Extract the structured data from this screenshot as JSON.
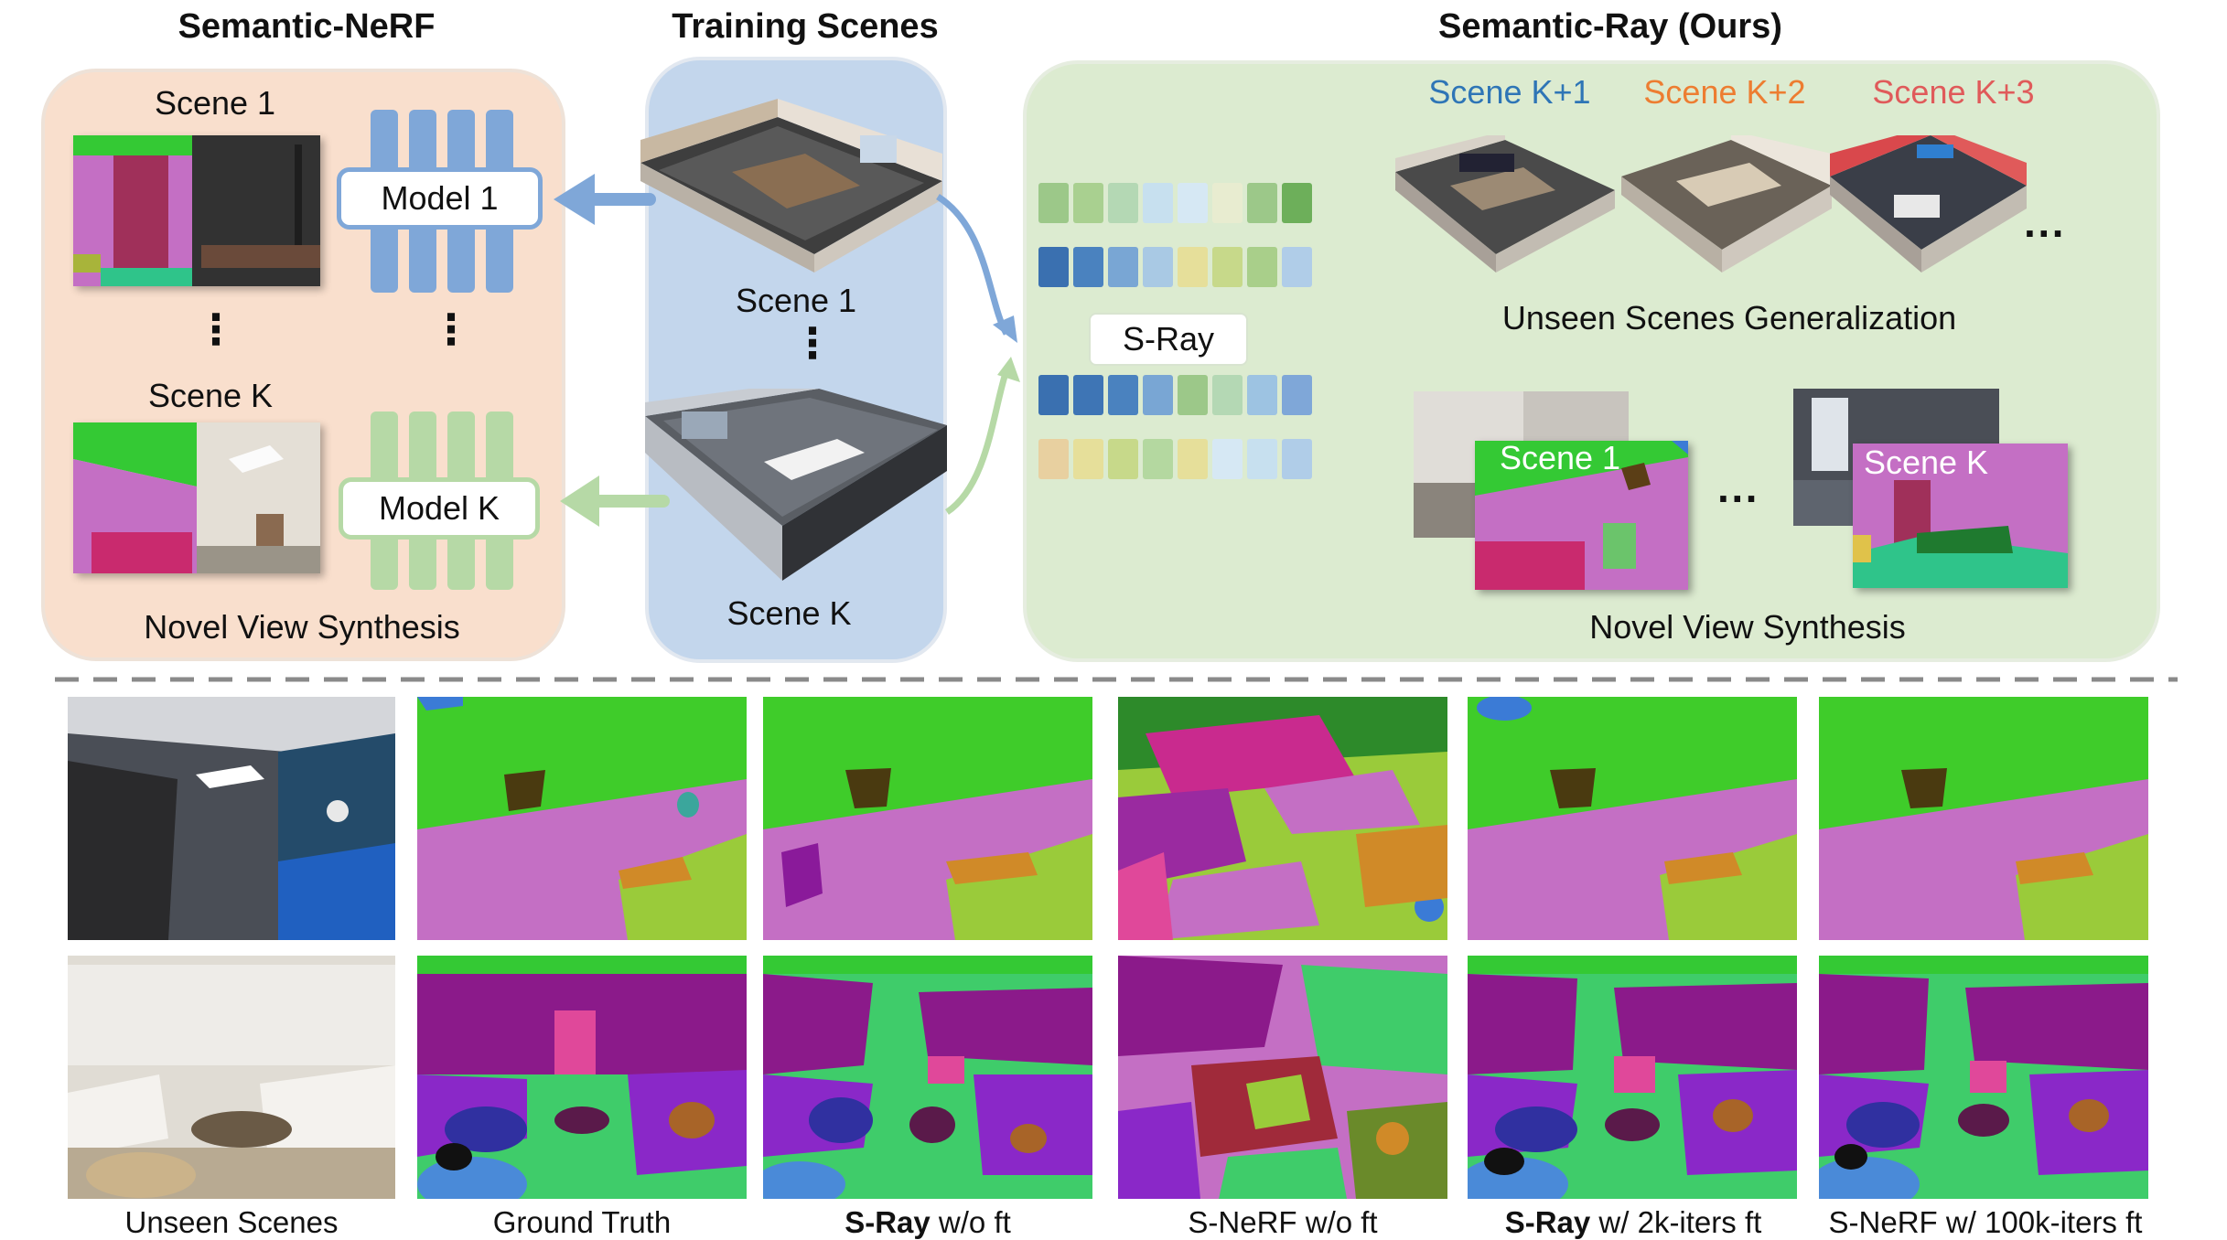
{
  "titles": {
    "left": "Semantic-NeRF",
    "middle": "Training Scenes",
    "right": "Semantic-Ray (Ours)"
  },
  "left_panel": {
    "scene_1": "Scene 1",
    "scene_k": "Scene K",
    "model_1": "Model 1",
    "model_k": "Model K",
    "footer": "Novel View Synthesis"
  },
  "middle_panel": {
    "scene_1": "Scene 1",
    "scene_k": "Scene K"
  },
  "right_panel": {
    "scene_k1": "Scene K+1",
    "scene_k2": "Scene K+2",
    "scene_k3": "Scene K+3",
    "network_label": "S-Ray",
    "generalization": "Unseen Scenes Generalization",
    "overlay_scene_1": "Scene 1",
    "overlay_scene_k": "Scene K",
    "footer": "Novel View Synthesis",
    "ellipsis": "···"
  },
  "colors": {
    "scene_k1": "#2e75b6",
    "scene_k2": "#ed7d31",
    "scene_k3": "#e05a5a",
    "left_panel": "#f9dfcd",
    "middle_panel": "#c3d6ec",
    "right_panel": "#dcebd0",
    "model_1_bars": "#7fa7d8",
    "model_k_bars": "#b6d9a6"
  },
  "bottom_captions": [
    {
      "bold": "",
      "text": "Unseen Scenes"
    },
    {
      "bold": "",
      "text": "Ground Truth"
    },
    {
      "bold": "S-Ray",
      "text": " w/o ft"
    },
    {
      "bold": "",
      "text": "S-NeRF w/o ft"
    },
    {
      "bold": "S-Ray",
      "text": " w/ 2k-iters ft"
    },
    {
      "bold": "",
      "text": "S-NeRF w/ 100k-iters ft"
    }
  ]
}
